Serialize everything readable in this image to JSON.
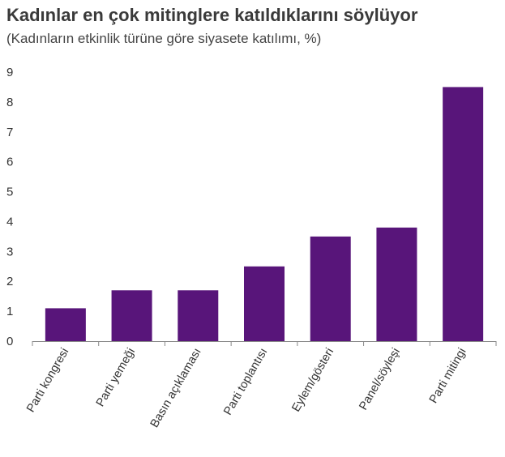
{
  "chart_data": {
    "type": "bar",
    "title": "Kadınlar en çok mitinglere katıldıklarını söylüyor",
    "subtitle": "(Kadınların etkinlik türüne göre siyasete katılımı, %)",
    "categories": [
      "Parti kongresi",
      "Parti yemeği",
      "Basın açıklaması",
      "Parti toplantısı",
      "Eylem/gösteri",
      "Panel/söyleşi",
      "Parti mitingi"
    ],
    "values": [
      1.1,
      1.7,
      1.7,
      2.5,
      3.5,
      3.8,
      8.5
    ],
    "yticks": [
      "0",
      "1",
      "2",
      "3",
      "4",
      "5",
      "6",
      "7",
      "8",
      "9"
    ],
    "ylim": [
      0,
      9
    ],
    "grid": false,
    "bar_color": "#58157a",
    "axis_color": "#888888"
  }
}
